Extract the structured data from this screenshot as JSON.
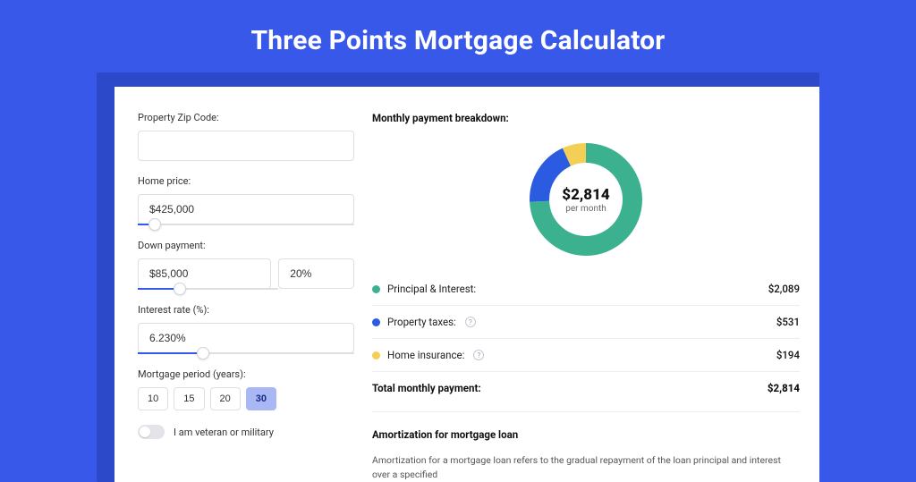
{
  "page_title": "Three Points Mortgage Calculator",
  "colors": {
    "page_bg": "#3858e9",
    "shadow_bg": "#2b49c8",
    "panel_bg": "#ffffff",
    "accent": "#3858e9",
    "border": "#dcdfe4"
  },
  "form": {
    "zip": {
      "label": "Property Zip Code:",
      "value": ""
    },
    "home_price": {
      "label": "Home price:",
      "value": "$425,000",
      "slider_pct": 8
    },
    "down_payment": {
      "label": "Down payment:",
      "amount": "$85,000",
      "pct": "20%",
      "slider_pct": 20
    },
    "interest_rate": {
      "label": "Interest rate (%):",
      "value": "6.230%",
      "slider_pct": 30
    },
    "period": {
      "label": "Mortgage period (years):",
      "options": [
        "10",
        "15",
        "20",
        "30"
      ],
      "active": "30"
    },
    "veteran": {
      "label": "I am veteran or military",
      "on": false
    }
  },
  "breakdown": {
    "title": "Monthly payment breakdown:",
    "center_amount": "$2,814",
    "center_sub": "per month",
    "donut": {
      "type": "donut",
      "radius": 52,
      "stroke_width": 22,
      "slices": [
        {
          "key": "pi",
          "value": 2089,
          "color": "#3bb18f"
        },
        {
          "key": "tax",
          "value": 531,
          "color": "#2b5be0"
        },
        {
          "key": "ins",
          "value": 194,
          "color": "#f3cf55"
        }
      ],
      "total": 2814
    },
    "items": [
      {
        "key": "pi",
        "label": "Principal & Interest:",
        "value": "$2,089",
        "dot": "#3bb18f",
        "info": false
      },
      {
        "key": "tax",
        "label": "Property taxes:",
        "value": "$531",
        "dot": "#2b5be0",
        "info": true
      },
      {
        "key": "ins",
        "label": "Home insurance:",
        "value": "$194",
        "dot": "#f3cf55",
        "info": true
      }
    ],
    "total": {
      "label": "Total monthly payment:",
      "value": "$2,814"
    }
  },
  "amortization": {
    "title": "Amortization for mortgage loan",
    "body": "Amortization for a mortgage loan refers to the gradual repayment of the loan principal and interest over a specified"
  }
}
